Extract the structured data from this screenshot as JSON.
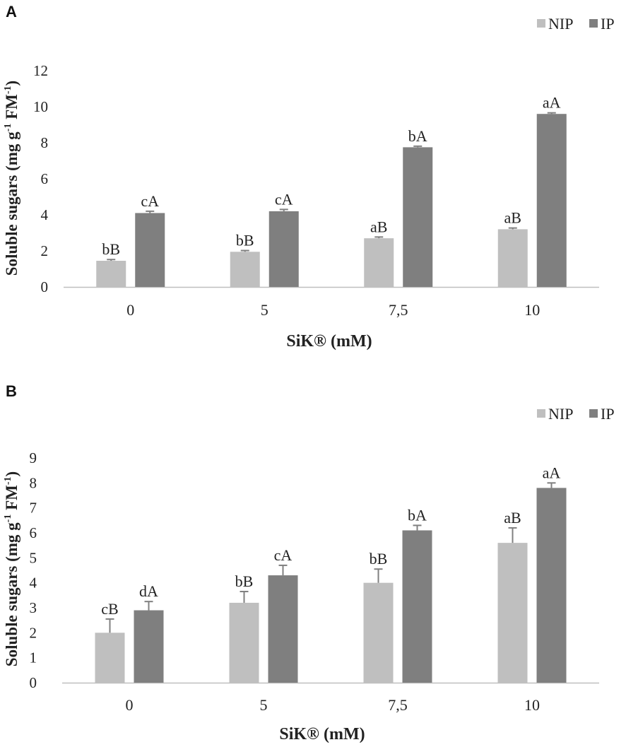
{
  "legend": {
    "nip": "NIP",
    "ip": "IP"
  },
  "colors": {
    "nip": "#bfbfbf",
    "ip": "#7f7f7f",
    "axis": "#bfbfbf",
    "error": "#808080"
  },
  "chart_data": [
    {
      "type": "bar",
      "panel": "A",
      "categories": [
        "0",
        "5",
        "7,5",
        "10"
      ],
      "series": [
        {
          "name": "NIP",
          "values": [
            1.45,
            1.95,
            2.7,
            3.2
          ],
          "errors": [
            0.07,
            0.07,
            0.07,
            0.07
          ],
          "labels": [
            "bB",
            "bB",
            "aB",
            "aB"
          ]
        },
        {
          "name": "IP",
          "values": [
            4.1,
            4.2,
            7.75,
            9.6
          ],
          "errors": [
            0.1,
            0.1,
            0.06,
            0.06
          ],
          "labels": [
            "cA",
            "cA",
            "bA",
            "aA"
          ]
        }
      ],
      "xlabel": "SiK® (mM)",
      "ylabel": {
        "main": "Soluble sugars (mg g",
        "sup1": "-1",
        "mid": " FM",
        "sup2": "-1",
        "end": ")"
      },
      "ylim": [
        0,
        12
      ],
      "yticks": [
        "0",
        "2",
        "4",
        "6",
        "8",
        "10",
        "12"
      ],
      "legend_position": "top-right"
    },
    {
      "type": "bar",
      "panel": "B",
      "categories": [
        "0",
        "5",
        "7,5",
        "10"
      ],
      "series": [
        {
          "name": "NIP",
          "values": [
            2.0,
            3.2,
            4.0,
            5.6
          ],
          "errors": [
            0.55,
            0.45,
            0.55,
            0.6
          ],
          "labels": [
            "cB",
            "bB",
            "bB",
            "aB"
          ]
        },
        {
          "name": "IP",
          "values": [
            2.9,
            4.3,
            6.1,
            7.8
          ],
          "errors": [
            0.35,
            0.4,
            0.2,
            0.2
          ],
          "labels": [
            "dA",
            "cA",
            "bA",
            "aA"
          ]
        }
      ],
      "xlabel": "SiK® (mM)",
      "ylabel": {
        "main": "Soluble sugars  (mg g",
        "sup1": "-1",
        "mid": " FM",
        "sup2": "-1",
        "end": ")"
      },
      "ylim": [
        0,
        9
      ],
      "yticks": [
        "0",
        "1",
        "2",
        "3",
        "4",
        "5",
        "6",
        "7",
        "8",
        "9"
      ],
      "legend_position": "top-right"
    }
  ]
}
